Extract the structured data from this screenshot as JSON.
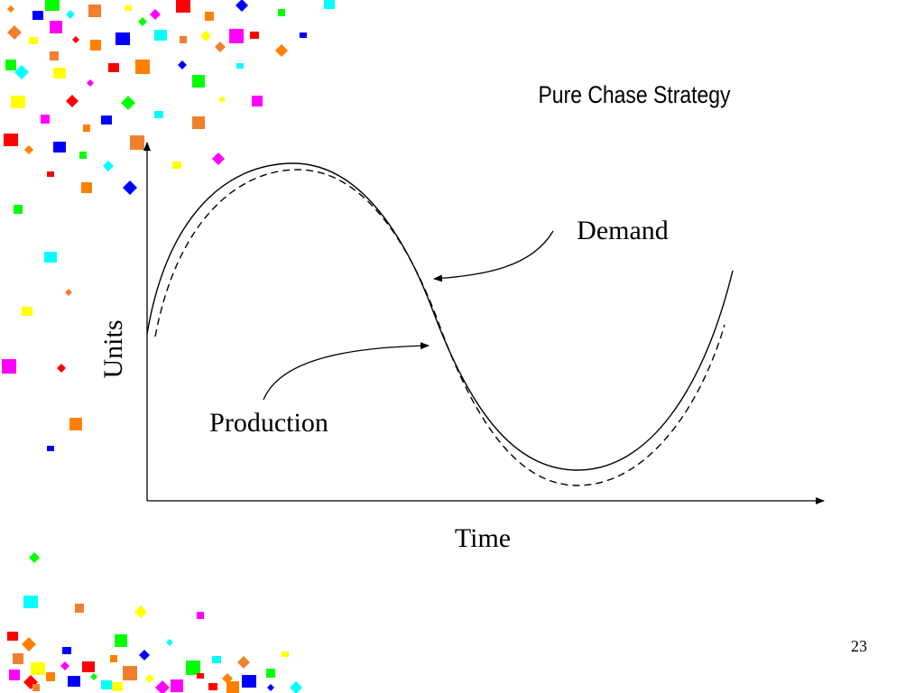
{
  "title": "Pure Chase Strategy",
  "diagram": {
    "y_axis_label": "Units",
    "x_axis_label": "Time",
    "demand_label": "Demand",
    "production_label": "Production"
  },
  "slide_number": "23"
}
